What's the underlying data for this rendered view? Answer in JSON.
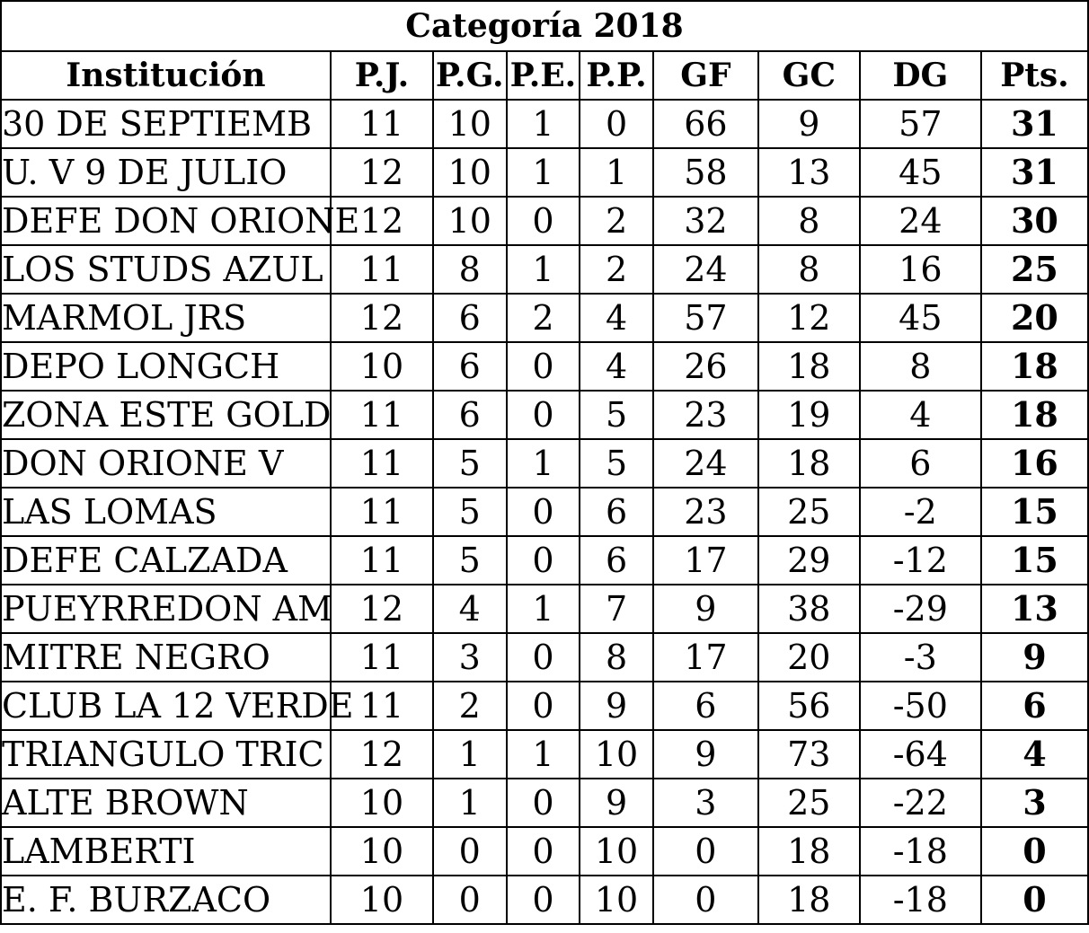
{
  "caption": "Categoría  2018",
  "columns": [
    "Institución",
    "P.J.",
    "P.G.",
    "P.E.",
    "P.P.",
    "GF",
    "GC",
    "DG",
    "Pts."
  ],
  "rows": [
    {
      "team": "30 DE SEPTIEMB",
      "pj": "11",
      "pg": "10",
      "pe": "1",
      "pp": "0",
      "gf": "66",
      "gc": "9",
      "dg": "57",
      "pts": "31"
    },
    {
      "team": "U. V 9 DE JULIO",
      "pj": "12",
      "pg": "10",
      "pe": "1",
      "pp": "1",
      "gf": "58",
      "gc": "13",
      "dg": "45",
      "pts": "31"
    },
    {
      "team": "DEFE DON ORIONE",
      "pj": "12",
      "pg": "10",
      "pe": "0",
      "pp": "2",
      "gf": "32",
      "gc": "8",
      "dg": "24",
      "pts": "30"
    },
    {
      "team": "LOS STUDS AZUL",
      "pj": "11",
      "pg": "8",
      "pe": "1",
      "pp": "2",
      "gf": "24",
      "gc": "8",
      "dg": "16",
      "pts": "25"
    },
    {
      "team": "MARMOL JRS",
      "pj": "12",
      "pg": "6",
      "pe": "2",
      "pp": "4",
      "gf": "57",
      "gc": "12",
      "dg": "45",
      "pts": "20"
    },
    {
      "team": "DEPO LONGCH",
      "pj": "10",
      "pg": "6",
      "pe": "0",
      "pp": "4",
      "gf": "26",
      "gc": "18",
      "dg": "8",
      "pts": "18"
    },
    {
      "team": "ZONA ESTE GOLD",
      "pj": "11",
      "pg": "6",
      "pe": "0",
      "pp": "5",
      "gf": "23",
      "gc": "19",
      "dg": "4",
      "pts": "18"
    },
    {
      "team": "DON ORIONE V",
      "pj": "11",
      "pg": "5",
      "pe": "1",
      "pp": "5",
      "gf": "24",
      "gc": "18",
      "dg": "6",
      "pts": "16"
    },
    {
      "team": "LAS LOMAS",
      "pj": "11",
      "pg": "5",
      "pe": "0",
      "pp": "6",
      "gf": "23",
      "gc": "25",
      "dg": "-2",
      "pts": "15"
    },
    {
      "team": "DEFE CALZADA",
      "pj": "11",
      "pg": "5",
      "pe": "0",
      "pp": "6",
      "gf": "17",
      "gc": "29",
      "dg": "-12",
      "pts": "15"
    },
    {
      "team": "PUEYRREDON AM",
      "pj": "12",
      "pg": "4",
      "pe": "1",
      "pp": "7",
      "gf": "9",
      "gc": "38",
      "dg": "-29",
      "pts": "13"
    },
    {
      "team": "MITRE NEGRO",
      "pj": "11",
      "pg": "3",
      "pe": "0",
      "pp": "8",
      "gf": "17",
      "gc": "20",
      "dg": "-3",
      "pts": "9"
    },
    {
      "team": "CLUB LA 12 VERDE",
      "pj": "11",
      "pg": "2",
      "pe": "0",
      "pp": "9",
      "gf": "6",
      "gc": "56",
      "dg": "-50",
      "pts": "6"
    },
    {
      "team": "TRIANGULO TRIC",
      "pj": "12",
      "pg": "1",
      "pe": "1",
      "pp": "10",
      "gf": "9",
      "gc": "73",
      "dg": "-64",
      "pts": "4"
    },
    {
      "team": "ALTE BROWN",
      "pj": "10",
      "pg": "1",
      "pe": "0",
      "pp": "9",
      "gf": "3",
      "gc": "25",
      "dg": "-22",
      "pts": "3"
    },
    {
      "team": "LAMBERTI",
      "pj": "10",
      "pg": "0",
      "pe": "0",
      "pp": "10",
      "gf": "0",
      "gc": "18",
      "dg": "-18",
      "pts": "0"
    },
    {
      "team": "E. F.  BURZACO",
      "pj": "10",
      "pg": "0",
      "pe": "0",
      "pp": "10",
      "gf": "0",
      "gc": "18",
      "dg": "-18",
      "pts": "0"
    }
  ]
}
